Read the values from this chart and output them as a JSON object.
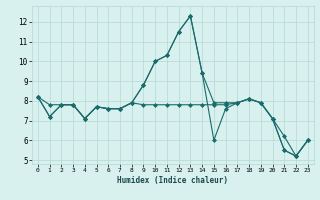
{
  "title": "",
  "xlabel": "Humidex (Indice chaleur)",
  "xlim": [
    -0.5,
    23.5
  ],
  "ylim": [
    4.8,
    12.8
  ],
  "yticks": [
    5,
    6,
    7,
    8,
    9,
    10,
    11,
    12
  ],
  "xticks": [
    0,
    1,
    2,
    3,
    4,
    5,
    6,
    7,
    8,
    9,
    10,
    11,
    12,
    13,
    14,
    15,
    16,
    17,
    18,
    19,
    20,
    21,
    22,
    23
  ],
  "bg_color": "#d8f0ee",
  "line_color": "#1a6b6b",
  "grid_color": "#b5d8d5",
  "series": [
    [
      8.2,
      7.2,
      7.8,
      7.8,
      7.1,
      7.7,
      7.6,
      7.6,
      7.9,
      8.8,
      10.0,
      10.3,
      11.5,
      12.3,
      9.4,
      6.0,
      7.6,
      7.9,
      8.1,
      7.9,
      7.1,
      6.2,
      5.2,
      6.0
    ],
    [
      8.2,
      7.2,
      7.8,
      7.8,
      7.1,
      7.7,
      7.6,
      7.6,
      7.9,
      7.8,
      7.8,
      7.8,
      7.8,
      7.8,
      7.8,
      7.8,
      7.8,
      7.9,
      8.1,
      7.9,
      7.1,
      5.5,
      5.2,
      6.0
    ],
    [
      8.2,
      7.8,
      7.8,
      7.8,
      7.1,
      7.7,
      7.6,
      7.6,
      7.9,
      8.8,
      10.0,
      10.3,
      11.5,
      12.3,
      9.4,
      7.9,
      7.9,
      7.9,
      8.1,
      7.9,
      7.1,
      5.5,
      5.2,
      6.0
    ]
  ],
  "marker": "D",
  "markersize": 2.0,
  "linewidth": 0.8
}
